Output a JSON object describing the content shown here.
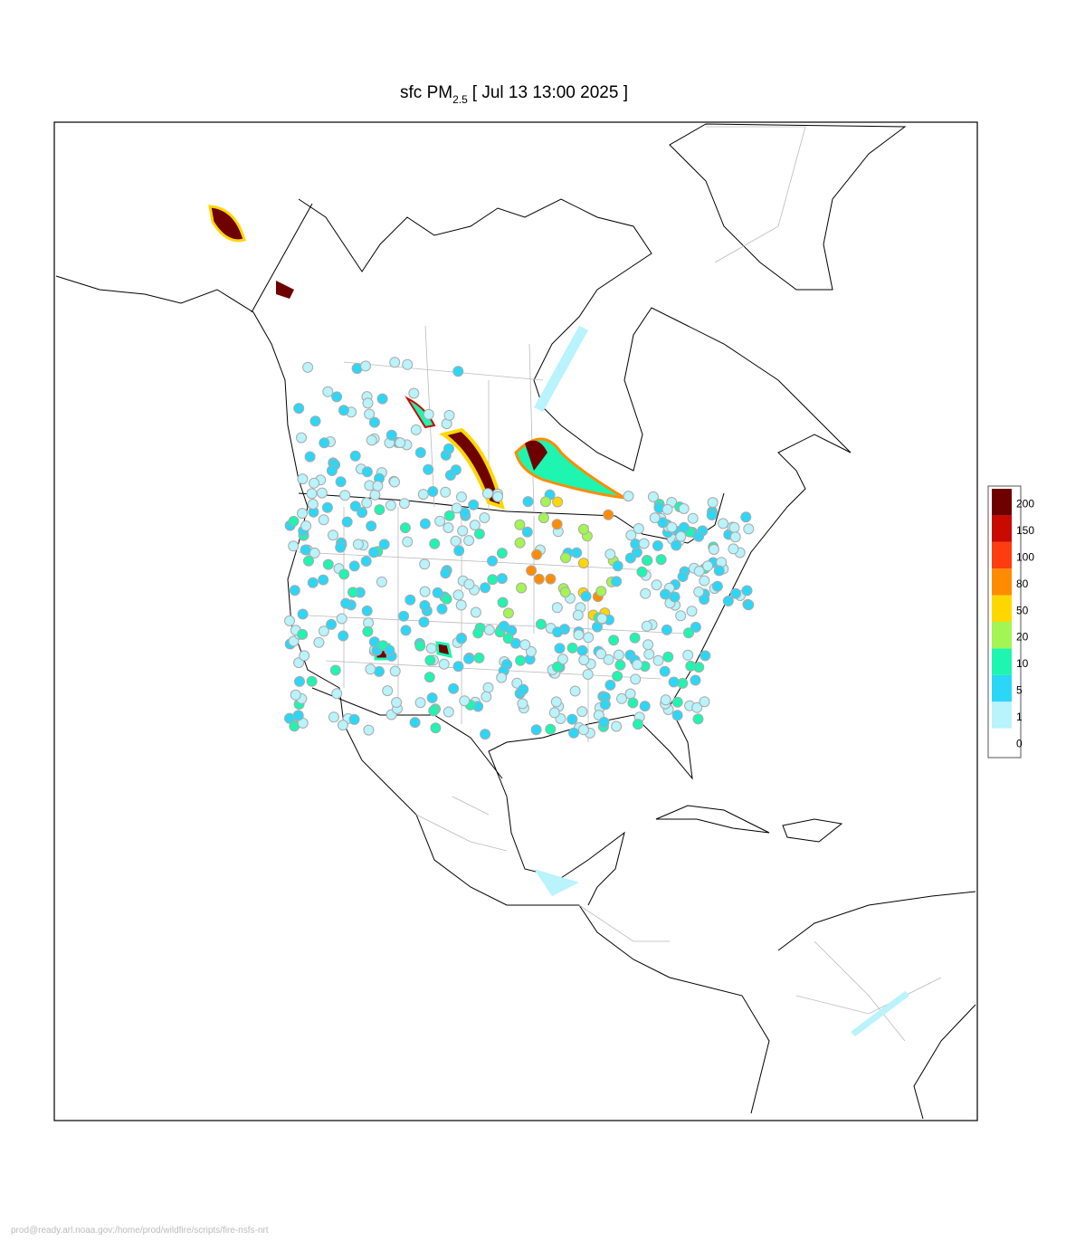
{
  "header": {
    "title_main": "sfc PM",
    "title_sub": "2.5",
    "title_time": "[ Jul 13 13:00 2025 ]"
  },
  "legend": {
    "levels": [
      {
        "value": 0,
        "color": "#ffffff"
      },
      {
        "value": 1,
        "color": "#b9f3fb"
      },
      {
        "value": 5,
        "color": "#2ad7f7"
      },
      {
        "value": 10,
        "color": "#1ef5b0"
      },
      {
        "value": 20,
        "color": "#a2f552"
      },
      {
        "value": 50,
        "color": "#ffd700"
      },
      {
        "value": 80,
        "color": "#ff8c00"
      },
      {
        "value": 100,
        "color": "#ff3c0f"
      },
      {
        "value": 150,
        "color": "#c80a00"
      },
      {
        "value": 200,
        "color": "#6e0000"
      }
    ]
  },
  "footer": {
    "path": "prod@ready.arl.noaa.gov:/home/prod/wildfire/scripts/fire-nsfs-nrt"
  }
}
